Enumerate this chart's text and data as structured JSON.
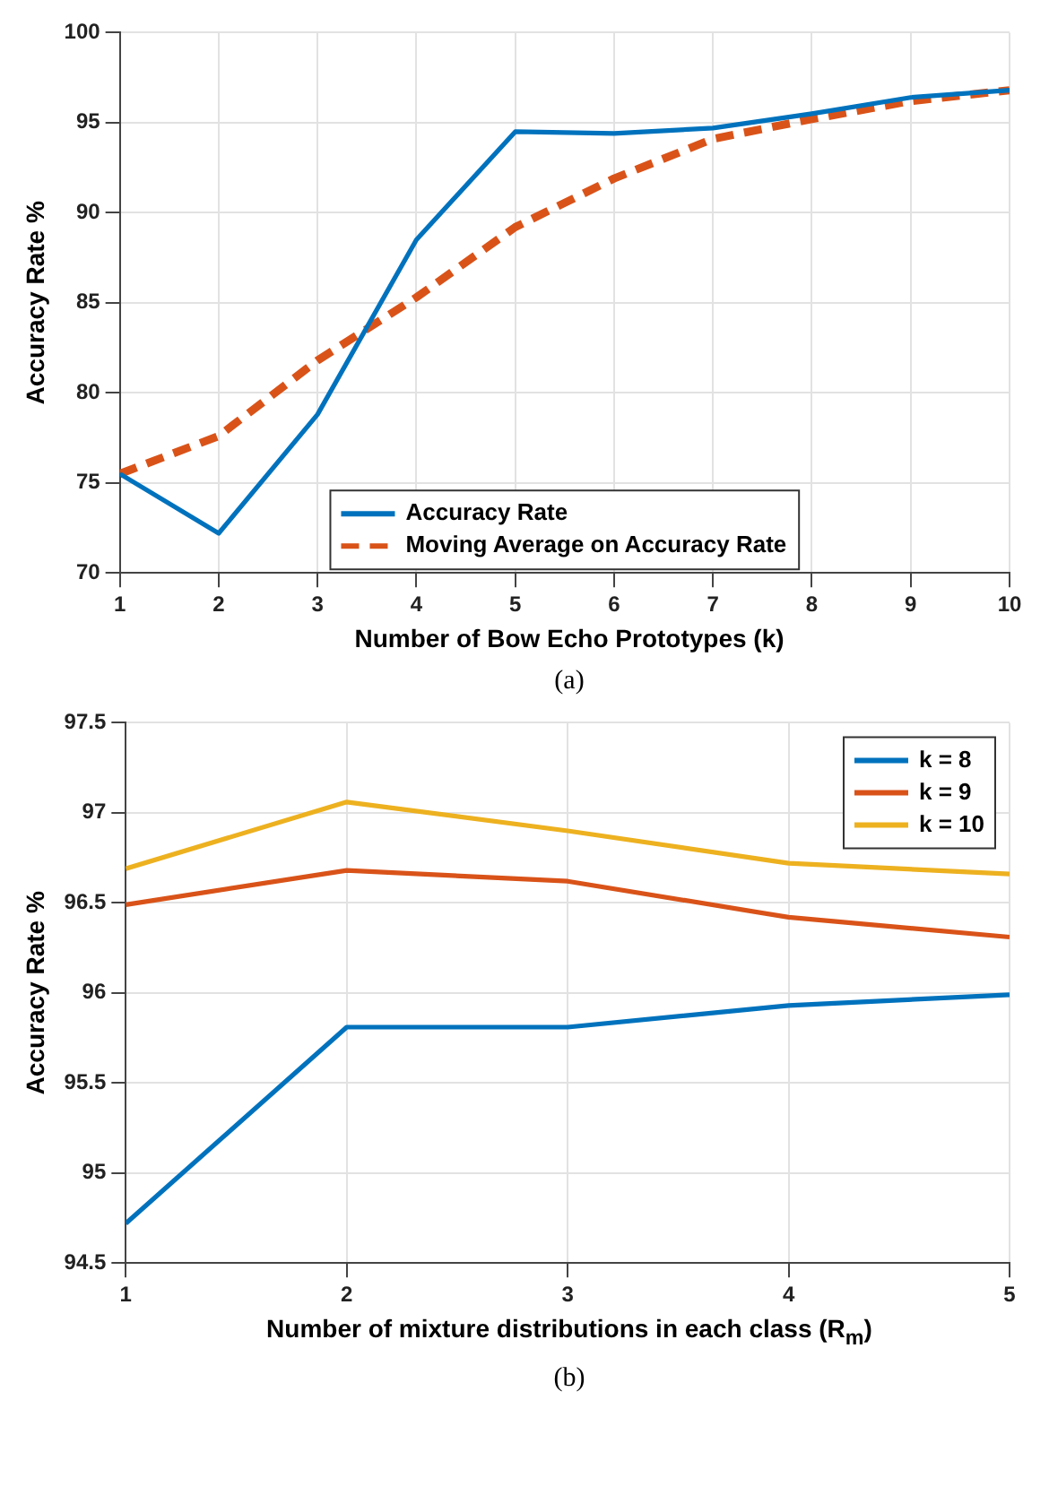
{
  "chart_data": [
    {
      "type": "line",
      "xlabel": "Number of Bow Echo Prototypes (k)",
      "ylabel": "Accuracy Rate %",
      "x": [
        1,
        2,
        3,
        4,
        5,
        6,
        7,
        8,
        9,
        10
      ],
      "series": [
        {
          "name": "Accuracy Rate",
          "color": "#0072bd",
          "line_style": "solid",
          "values": [
            75.5,
            72.2,
            78.8,
            88.5,
            94.5,
            94.4,
            94.7,
            95.5,
            96.4,
            96.8
          ]
        },
        {
          "name": "Moving Average on Accuracy Rate",
          "color": "#d95319",
          "line_style": "dashed",
          "values": [
            75.5,
            77.6,
            81.8,
            85.3,
            89.2,
            91.9,
            94.1,
            95.2,
            96.2,
            96.8
          ]
        }
      ],
      "xlim": [
        1,
        10
      ],
      "xticks": [
        1,
        2,
        3,
        4,
        5,
        6,
        7,
        8,
        9,
        10
      ],
      "ylim": [
        70,
        100
      ],
      "yticks": [
        70,
        75,
        80,
        85,
        90,
        95,
        100
      ],
      "grid": true,
      "legend": "bottom",
      "marker": "none",
      "annotations": [
        "(a)"
      ]
    },
    {
      "type": "line",
      "xlabel": "Number of mixture distributions in each class (R$_{m}$)",
      "ylabel": "Accuracy Rate %",
      "x": [
        1,
        2,
        3,
        4,
        5
      ],
      "series": [
        {
          "name": "k = 8",
          "color": "#0072bd",
          "values": [
            94.72,
            95.81,
            95.81,
            95.93,
            95.99
          ]
        },
        {
          "name": "k = 9",
          "color": "#d95319",
          "values": [
            96.49,
            96.68,
            96.62,
            96.42,
            96.31
          ]
        },
        {
          "name": "k = 10",
          "color": "#edb120",
          "values": [
            96.69,
            97.06,
            96.9,
            96.72,
            96.66
          ]
        }
      ],
      "xlim": [
        1,
        5
      ],
      "xticks": [
        1,
        2,
        3,
        4,
        5
      ],
      "ylim": [
        94.5,
        97.5
      ],
      "yticks": [
        94.5,
        95,
        95.5,
        96,
        96.5,
        97,
        97.5
      ],
      "grid": true,
      "legend": "top right",
      "marker": "none",
      "line_style": "solid",
      "annotations": [
        "(b)"
      ]
    }
  ]
}
